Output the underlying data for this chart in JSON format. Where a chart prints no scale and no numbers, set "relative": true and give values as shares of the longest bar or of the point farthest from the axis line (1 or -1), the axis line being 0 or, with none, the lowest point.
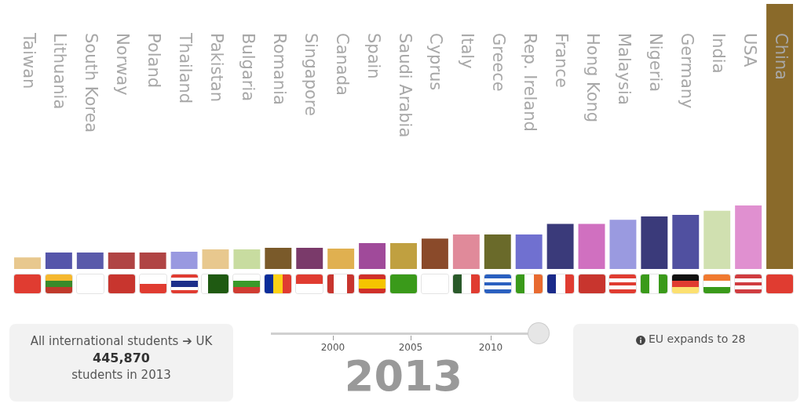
{
  "chart_data": {
    "type": "bar",
    "relative": true,
    "legend": false,
    "categories": [
      "Taiwan",
      "Lithuania",
      "South Korea",
      "Norway",
      "Poland",
      "Thailand",
      "Pakistan",
      "Bulgaria",
      "Romania",
      "Singapore",
      "Canada",
      "Spain",
      "Saudi Arabia",
      "Cyprus",
      "Italy",
      "Greece",
      "Rep. Ireland",
      "France",
      "Hong Kong",
      "Malaysia",
      "Nigeria",
      "Germany",
      "India",
      "USA",
      "China"
    ],
    "values": [
      0.044,
      0.062,
      0.062,
      0.062,
      0.062,
      0.065,
      0.074,
      0.074,
      0.08,
      0.08,
      0.077,
      0.098,
      0.098,
      0.115,
      0.13,
      0.13,
      0.13,
      0.17,
      0.17,
      0.186,
      0.198,
      0.204,
      0.22,
      0.24,
      1
    ],
    "colors": [
      "#e8c88e",
      "#5555aa",
      "#5a5aaa",
      "#b04444",
      "#b04444",
      "#9999e0",
      "#e8c88e",
      "#c8dca0",
      "#7a5a2a",
      "#7a3a6a",
      "#e0b050",
      "#a04a9a",
      "#c0a040",
      "#8a4a2a",
      "#e08a9a",
      "#6a6a2a",
      "#7070d0",
      "#3a3a7a",
      "#d070c0",
      "#9a9ae0",
      "#3a3a7a",
      "#5050a0",
      "#d0e0b0",
      "#e090d0",
      "#8a6a2a"
    ],
    "annotations": [
      "All international students ➔ UK",
      "445,870",
      "students in 2013",
      "2000",
      "2005",
      "2010",
      "2013",
      "EU expands to 28"
    ]
  }
}
